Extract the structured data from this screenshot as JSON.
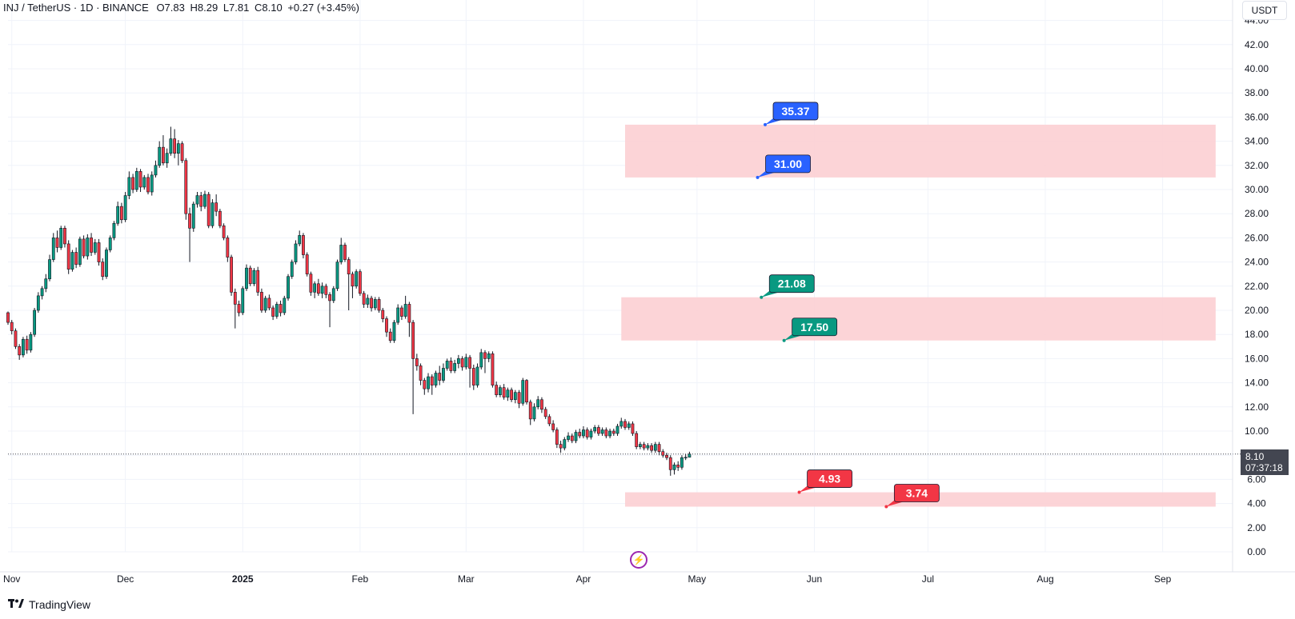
{
  "legend": {
    "symbol": "INJ / TetherUS · 1D · BINANCE",
    "open": "O7.83",
    "high": "H8.29",
    "low": "L7.81",
    "close": "C8.10",
    "change": "+0.27 (+3.45%)"
  },
  "currency_label": "USDT",
  "price_label": {
    "price": "8.10",
    "countdown": "07:37:18"
  },
  "branding": {
    "name": "TradingView"
  },
  "colors": {
    "up": "#089981",
    "down": "#f23645",
    "zone": "#fccfd3",
    "blue": "#2962ff",
    "green": "#089981",
    "red": "#f23645",
    "flash": "#9c27b0"
  },
  "icons": {
    "flash": "lightning-icon",
    "logo": "tradingview-logo-icon"
  },
  "chart_data": {
    "type": "candlestick",
    "y_axis": {
      "min": 0,
      "max": 44,
      "ticks": [
        "0.00",
        "2.00",
        "4.00",
        "6.00",
        "8.00",
        "10.00",
        "12.00",
        "14.00",
        "16.00",
        "18.00",
        "20.00",
        "22.00",
        "24.00",
        "26.00",
        "28.00",
        "30.00",
        "32.00",
        "34.00",
        "36.00",
        "38.00",
        "40.00",
        "42.00",
        "44.00"
      ]
    },
    "x_axis": {
      "ticks": [
        {
          "label": "Nov",
          "date": "2024-11-01",
          "bold": false
        },
        {
          "label": "Dec",
          "date": "2024-12-01",
          "bold": false
        },
        {
          "label": "2025",
          "date": "2025-01-01",
          "bold": true
        },
        {
          "label": "Feb",
          "date": "2025-02-01",
          "bold": false
        },
        {
          "label": "Mar",
          "date": "2025-03-01",
          "bold": false
        },
        {
          "label": "Apr",
          "date": "2025-04-01",
          "bold": false
        },
        {
          "label": "May",
          "date": "2025-05-01",
          "bold": false
        },
        {
          "label": "Jun",
          "date": "2025-06-01",
          "bold": false
        },
        {
          "label": "Jul",
          "date": "2025-07-01",
          "bold": false
        },
        {
          "label": "Aug",
          "date": "2025-08-01",
          "bold": false
        },
        {
          "label": "Sep",
          "date": "2025-09-01",
          "bold": false
        }
      ]
    },
    "first_date": "2024-10-31",
    "candles": [
      [
        19.8,
        19.0,
        19.9,
        18.8
      ],
      [
        19.0,
        18.3,
        19.2,
        18.0
      ],
      [
        18.3,
        17.0,
        18.5,
        16.8
      ],
      [
        17.0,
        16.3,
        17.2,
        15.9
      ],
      [
        16.3,
        17.6,
        17.8,
        16.1
      ],
      [
        17.6,
        16.7,
        17.9,
        16.4
      ],
      [
        16.7,
        18.0,
        18.2,
        16.5
      ],
      [
        18.0,
        20.0,
        20.2,
        17.8
      ],
      [
        20.0,
        21.2,
        21.5,
        19.8
      ],
      [
        21.2,
        21.8,
        22.0,
        20.9
      ],
      [
        21.8,
        22.6,
        23.0,
        21.5
      ],
      [
        22.6,
        24.2,
        24.6,
        22.4
      ],
      [
        24.2,
        26.0,
        26.4,
        24.0
      ],
      [
        26.0,
        25.2,
        26.6,
        24.8
      ],
      [
        25.2,
        26.8,
        27.0,
        25.0
      ],
      [
        26.8,
        25.5,
        27.0,
        25.2
      ],
      [
        25.5,
        23.4,
        25.8,
        23.0
      ],
      [
        23.4,
        24.8,
        25.0,
        23.2
      ],
      [
        24.8,
        23.8,
        25.2,
        23.5
      ],
      [
        23.8,
        25.9,
        26.1,
        23.6
      ],
      [
        25.9,
        24.5,
        26.2,
        24.3
      ],
      [
        24.5,
        26.0,
        26.3,
        24.2
      ],
      [
        26.0,
        24.8,
        26.4,
        24.5
      ],
      [
        24.8,
        25.6,
        25.9,
        24.6
      ],
      [
        25.6,
        24.0,
        25.9,
        23.7
      ],
      [
        24.0,
        22.8,
        24.3,
        22.5
      ],
      [
        22.8,
        25.0,
        25.2,
        22.6
      ],
      [
        25.0,
        26.0,
        26.2,
        24.8
      ],
      [
        26.0,
        27.2,
        27.4,
        25.8
      ],
      [
        27.2,
        28.6,
        29.0,
        27.0
      ],
      [
        28.6,
        27.5,
        28.9,
        27.2
      ],
      [
        27.5,
        29.5,
        29.8,
        27.3
      ],
      [
        29.5,
        31.0,
        31.5,
        29.2
      ],
      [
        31.0,
        30.0,
        31.3,
        29.7
      ],
      [
        30.0,
        31.5,
        31.8,
        29.8
      ],
      [
        31.5,
        30.2,
        31.7,
        29.8
      ],
      [
        30.2,
        31.0,
        31.2,
        30.0
      ],
      [
        31.0,
        29.8,
        31.3,
        29.6
      ],
      [
        29.8,
        31.2,
        31.5,
        29.5
      ],
      [
        31.2,
        32.0,
        32.4,
        31.0
      ],
      [
        32.0,
        33.5,
        34.0,
        31.8
      ],
      [
        33.5,
        32.2,
        34.5,
        32.0
      ],
      [
        32.2,
        33.0,
        33.4,
        31.8
      ],
      [
        33.0,
        34.2,
        35.2,
        32.8
      ],
      [
        34.2,
        33.0,
        35.0,
        32.6
      ],
      [
        33.0,
        33.8,
        34.1,
        32.0
      ],
      [
        33.8,
        32.4,
        34.0,
        32.2
      ],
      [
        32.4,
        28.0,
        32.6,
        27.5
      ],
      [
        28.0,
        26.8,
        28.5,
        24.0
      ],
      [
        26.8,
        28.8,
        29.0,
        26.5
      ],
      [
        28.8,
        29.5,
        29.8,
        28.5
      ],
      [
        29.5,
        28.6,
        29.8,
        28.2
      ],
      [
        28.6,
        29.6,
        29.9,
        28.4
      ],
      [
        29.6,
        27.0,
        29.8,
        26.8
      ],
      [
        27.0,
        28.9,
        29.2,
        26.8
      ],
      [
        28.9,
        28.2,
        29.6,
        27.8
      ],
      [
        28.2,
        27.0,
        28.4,
        26.8
      ],
      [
        27.0,
        26.0,
        27.2,
        25.8
      ],
      [
        26.0,
        24.4,
        26.2,
        24.0
      ],
      [
        24.4,
        21.5,
        24.6,
        21.2
      ],
      [
        21.5,
        20.5,
        21.8,
        18.5
      ],
      [
        20.5,
        19.8,
        20.8,
        19.5
      ],
      [
        19.8,
        21.8,
        22.0,
        19.6
      ],
      [
        21.8,
        23.5,
        23.8,
        21.6
      ],
      [
        23.5,
        22.2,
        23.7,
        22.0
      ],
      [
        22.2,
        23.3,
        23.5,
        22.0
      ],
      [
        23.3,
        21.5,
        23.6,
        21.2
      ],
      [
        21.5,
        20.0,
        21.8,
        19.8
      ],
      [
        20.0,
        21.0,
        21.2,
        19.8
      ],
      [
        21.0,
        20.2,
        21.3,
        20.0
      ],
      [
        20.2,
        19.5,
        20.4,
        19.2
      ],
      [
        19.5,
        20.5,
        20.7,
        19.3
      ],
      [
        20.5,
        19.8,
        20.8,
        19.5
      ],
      [
        19.8,
        21.0,
        21.2,
        19.6
      ],
      [
        21.0,
        22.8,
        23.0,
        20.8
      ],
      [
        22.8,
        24.0,
        24.2,
        22.6
      ],
      [
        24.0,
        25.5,
        25.8,
        23.8
      ],
      [
        25.5,
        26.2,
        26.6,
        25.3
      ],
      [
        26.2,
        24.6,
        26.4,
        24.3
      ],
      [
        24.6,
        23.0,
        24.8,
        22.8
      ],
      [
        23.0,
        21.5,
        23.2,
        21.2
      ],
      [
        21.5,
        22.2,
        22.4,
        21.0
      ],
      [
        22.2,
        21.4,
        22.6,
        21.2
      ],
      [
        21.4,
        22.0,
        22.3,
        21.0
      ],
      [
        22.0,
        21.3,
        22.2,
        21.0
      ],
      [
        21.3,
        20.8,
        21.5,
        18.6
      ],
      [
        20.8,
        21.8,
        22.0,
        20.6
      ],
      [
        21.8,
        24.0,
        24.2,
        21.6
      ],
      [
        24.0,
        25.4,
        26.0,
        23.8
      ],
      [
        25.4,
        24.2,
        25.6,
        24.0
      ],
      [
        24.2,
        23.0,
        24.4,
        20.0
      ],
      [
        23.0,
        22.0,
        23.2,
        21.0
      ],
      [
        22.0,
        23.2,
        23.4,
        21.8
      ],
      [
        23.2,
        21.4,
        23.4,
        21.2
      ],
      [
        21.4,
        20.5,
        21.6,
        20.2
      ],
      [
        20.5,
        21.0,
        21.3,
        20.2
      ],
      [
        21.0,
        20.2,
        21.2,
        19.9
      ],
      [
        20.2,
        20.9,
        21.1,
        20.0
      ],
      [
        20.9,
        20.0,
        21.1,
        19.8
      ],
      [
        20.0,
        19.3,
        20.2,
        19.0
      ],
      [
        19.3,
        18.2,
        19.5,
        17.8
      ],
      [
        18.2,
        17.5,
        18.5,
        17.3
      ],
      [
        17.5,
        19.0,
        19.2,
        17.3
      ],
      [
        19.0,
        20.2,
        20.5,
        18.8
      ],
      [
        20.2,
        19.5,
        20.4,
        19.2
      ],
      [
        19.5,
        20.5,
        21.2,
        19.3
      ],
      [
        20.5,
        19.0,
        20.7,
        17.8
      ],
      [
        19.0,
        16.0,
        19.2,
        11.4
      ],
      [
        16.0,
        15.4,
        16.4,
        15.0
      ],
      [
        15.4,
        14.2,
        15.6,
        13.8
      ],
      [
        14.2,
        13.5,
        14.4,
        13.0
      ],
      [
        13.5,
        14.5,
        14.8,
        13.2
      ],
      [
        14.5,
        13.8,
        14.7,
        13.0
      ],
      [
        13.8,
        14.8,
        15.0,
        13.6
      ],
      [
        14.8,
        14.2,
        15.4,
        13.8
      ],
      [
        14.2,
        15.2,
        15.6,
        14.0
      ],
      [
        15.2,
        15.8,
        16.0,
        15.0
      ],
      [
        15.8,
        15.0,
        16.1,
        14.8
      ],
      [
        15.0,
        15.6,
        15.9,
        14.8
      ],
      [
        15.6,
        16.0,
        16.3,
        15.2
      ],
      [
        16.0,
        15.3,
        16.2,
        15.0
      ],
      [
        15.3,
        16.1,
        16.4,
        15.1
      ],
      [
        16.1,
        15.2,
        16.3,
        13.6
      ],
      [
        15.2,
        13.8,
        15.5,
        13.4
      ],
      [
        13.8,
        15.3,
        15.6,
        13.6
      ],
      [
        15.3,
        16.5,
        16.8,
        15.1
      ],
      [
        16.5,
        16.0,
        16.7,
        14.8
      ],
      [
        16.0,
        16.4,
        16.6,
        15.7
      ],
      [
        16.4,
        13.8,
        16.6,
        13.6
      ],
      [
        13.8,
        13.0,
        14.1,
        12.8
      ],
      [
        13.0,
        13.6,
        13.8,
        12.8
      ],
      [
        13.6,
        12.8,
        13.9,
        12.6
      ],
      [
        12.8,
        13.4,
        13.6,
        12.5
      ],
      [
        13.4,
        12.6,
        13.6,
        12.4
      ],
      [
        12.6,
        13.2,
        13.4,
        12.3
      ],
      [
        13.2,
        12.3,
        13.4,
        11.9
      ],
      [
        12.3,
        14.2,
        14.4,
        12.1
      ],
      [
        14.2,
        12.4,
        14.3,
        12.2
      ],
      [
        12.4,
        11.0,
        12.6,
        10.5
      ],
      [
        11.0,
        12.0,
        12.3,
        10.8
      ],
      [
        12.0,
        12.6,
        12.9,
        11.8
      ],
      [
        12.6,
        11.8,
        12.8,
        11.5
      ],
      [
        11.8,
        11.2,
        12.0,
        11.0
      ],
      [
        11.2,
        10.6,
        11.4,
        10.4
      ],
      [
        10.6,
        10.1,
        10.9,
        9.9
      ],
      [
        10.1,
        8.9,
        10.3,
        8.6
      ],
      [
        8.9,
        8.6,
        9.2,
        8.2
      ],
      [
        8.6,
        9.3,
        9.5,
        8.4
      ],
      [
        9.3,
        9.6,
        9.9,
        9.1
      ],
      [
        9.6,
        9.2,
        9.8,
        9.0
      ],
      [
        9.2,
        9.9,
        10.1,
        9.0
      ],
      [
        9.9,
        9.6,
        10.2,
        9.4
      ],
      [
        9.6,
        10.1,
        10.4,
        9.4
      ],
      [
        10.1,
        9.5,
        10.3,
        9.3
      ],
      [
        9.5,
        10.0,
        10.2,
        9.3
      ],
      [
        10.0,
        10.3,
        10.5,
        9.8
      ],
      [
        10.3,
        9.8,
        10.5,
        9.6
      ],
      [
        9.8,
        10.1,
        10.3,
        9.6
      ],
      [
        10.1,
        9.6,
        10.3,
        9.4
      ],
      [
        9.6,
        10.0,
        10.2,
        9.4
      ],
      [
        10.0,
        9.8,
        10.2,
        9.6
      ],
      [
        9.8,
        10.4,
        10.6,
        9.6
      ],
      [
        10.4,
        10.8,
        11.1,
        10.2
      ],
      [
        10.8,
        10.3,
        11.0,
        10.1
      ],
      [
        10.3,
        10.6,
        10.8,
        10.1
      ],
      [
        10.6,
        9.8,
        10.8,
        9.6
      ],
      [
        9.8,
        8.7,
        10.0,
        8.5
      ],
      [
        8.7,
        8.9,
        9.1,
        8.5
      ],
      [
        8.9,
        8.6,
        9.1,
        8.4
      ],
      [
        8.6,
        8.8,
        9.0,
        8.4
      ],
      [
        8.8,
        8.4,
        9.0,
        8.2
      ],
      [
        8.4,
        8.9,
        9.1,
        8.2
      ],
      [
        8.9,
        8.3,
        9.1,
        8.0
      ],
      [
        8.3,
        8.0,
        8.5,
        7.8
      ],
      [
        8.0,
        7.8,
        8.2,
        7.6
      ],
      [
        7.8,
        6.8,
        8.0,
        6.3
      ],
      [
        6.8,
        7.2,
        7.4,
        6.4
      ],
      [
        7.2,
        7.0,
        7.5,
        6.7
      ],
      [
        7.0,
        7.8,
        8.0,
        6.8
      ],
      [
        7.8,
        7.83,
        8.1,
        7.6
      ],
      [
        7.83,
        8.1,
        8.29,
        7.81
      ]
    ],
    "zones": [
      {
        "top": 35.37,
        "bottom": 31.0,
        "start": "2025-04-12",
        "end": "2025-09-15"
      },
      {
        "top": 21.08,
        "bottom": 17.5,
        "start": "2025-04-11",
        "end": "2025-09-15"
      },
      {
        "top": 4.93,
        "bottom": 3.74,
        "start": "2025-04-12",
        "end": "2025-09-15"
      }
    ],
    "labels": [
      {
        "text": "35.37",
        "value": 35.37,
        "date": "2025-05-19",
        "color": "#2962ff"
      },
      {
        "text": "31.00",
        "value": 31.0,
        "date": "2025-05-17",
        "color": "#2962ff"
      },
      {
        "text": "21.08",
        "value": 21.08,
        "date": "2025-05-18",
        "color": "#089981"
      },
      {
        "text": "17.50",
        "value": 17.5,
        "date": "2025-05-24",
        "color": "#089981"
      },
      {
        "text": "4.93",
        "value": 4.93,
        "date": "2025-05-28",
        "color": "#f23645"
      },
      {
        "text": "3.74",
        "value": 3.74,
        "date": "2025-06-20",
        "color": "#f23645"
      }
    ],
    "last_price": 8.1
  }
}
